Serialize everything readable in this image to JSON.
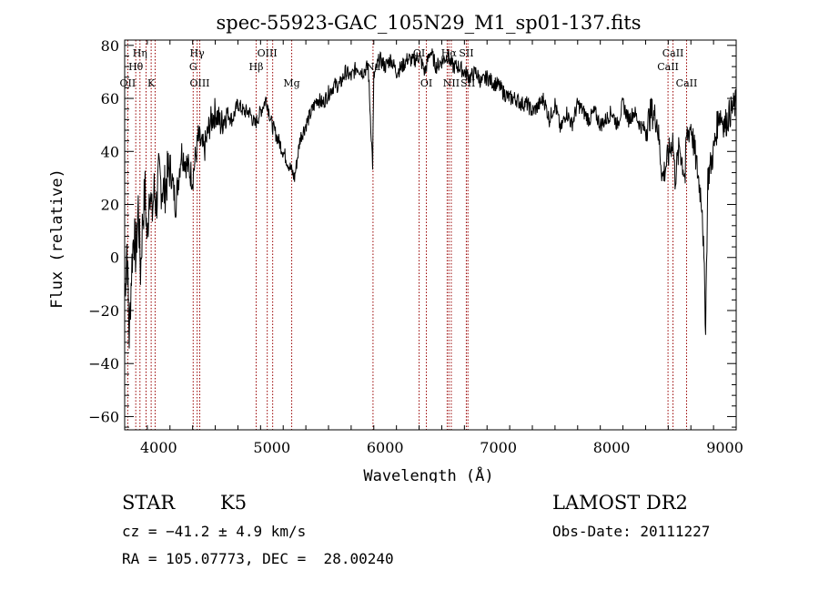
{
  "chart_data": {
    "type": "line",
    "title": "spec-55923-GAC_105N29_M1_sp01-137.fits",
    "xlabel": "Wavelength (Å)",
    "ylabel": "Flux (relative)",
    "xlim": [
      3700,
      9100
    ],
    "ylim": [
      -65,
      82
    ],
    "x_ticks": [
      4000,
      5000,
      6000,
      7000,
      8000,
      9000
    ],
    "y_ticks": [
      -60,
      -40,
      -20,
      0,
      20,
      40,
      60,
      80
    ],
    "grid": false,
    "legend": "none",
    "line_color": "#000000",
    "marker_color": "#990000",
    "series": [
      {
        "x": [
          3700,
          3720,
          3740,
          3760,
          3780,
          3800,
          3820,
          3840,
          3860,
          3880,
          3900,
          3920,
          3940,
          3960,
          3980,
          4000,
          4050,
          4100,
          4150,
          4200,
          4250,
          4300,
          4350,
          4400,
          4450,
          4500,
          4550,
          4600,
          4650,
          4700,
          4750,
          4800,
          4850,
          4900,
          4950,
          5000,
          5050,
          5100,
          5150,
          5200,
          5250,
          5300,
          5350,
          5400,
          5450,
          5500,
          5550,
          5600,
          5650,
          5700,
          5750,
          5800,
          5850,
          5890,
          5900,
          5950,
          6000,
          6050,
          6100,
          6150,
          6200,
          6250,
          6300,
          6350,
          6400,
          6450,
          6500,
          6550,
          6600,
          6650,
          6700,
          6750,
          6800,
          6850,
          6900,
          6950,
          7000,
          7050,
          7100,
          7150,
          7200,
          7250,
          7300,
          7350,
          7400,
          7450,
          7500,
          7550,
          7600,
          7650,
          7700,
          7750,
          7800,
          7850,
          7900,
          7950,
          8000,
          8050,
          8100,
          8150,
          8200,
          8250,
          8300,
          8350,
          8400,
          8450,
          8500,
          8540,
          8560,
          8600,
          8650,
          8660,
          8700,
          8750,
          8800,
          8830,
          8850,
          8900,
          8950,
          9000,
          9050,
          9100
        ],
        "y": [
          -15,
          5,
          -30,
          -5,
          10,
          0,
          20,
          -5,
          15,
          25,
          5,
          30,
          15,
          25,
          20,
          30,
          25,
          35,
          20,
          40,
          35,
          30,
          45,
          40,
          50,
          55,
          50,
          55,
          52,
          58,
          55,
          55,
          50,
          55,
          60,
          50,
          45,
          40,
          35,
          30,
          45,
          50,
          55,
          60,
          58,
          62,
          65,
          65,
          70,
          68,
          72,
          70,
          72,
          35,
          68,
          75,
          72,
          75,
          70,
          72,
          75,
          74,
          76,
          70,
          78,
          72,
          74,
          76,
          72,
          72,
          70,
          68,
          70,
          66,
          68,
          66,
          65,
          62,
          60,
          60,
          58,
          58,
          55,
          57,
          60,
          52,
          58,
          48,
          55,
          50,
          58,
          55,
          52,
          55,
          50,
          52,
          55,
          50,
          58,
          52,
          55,
          50,
          48,
          55,
          52,
          30,
          38,
          45,
          30,
          42,
          30,
          45,
          50,
          35,
          20,
          -25,
          30,
          40,
          55,
          50,
          55,
          58
        ]
      }
    ],
    "line_labels": [
      {
        "text": "Hη",
        "x": 3835,
        "row": 1
      },
      {
        "text": "Hθ",
        "x": 3798,
        "row": 2
      },
      {
        "text": "OII",
        "x": 3727,
        "row": 3
      },
      {
        "text": "K",
        "x": 3934,
        "row": 3
      },
      {
        "text": "Hγ",
        "x": 4340,
        "row": 1
      },
      {
        "text": "G",
        "x": 4305,
        "row": 2
      },
      {
        "text": "OIII",
        "x": 4363,
        "row": 3
      },
      {
        "text": "OIII",
        "x": 4959,
        "row": 1
      },
      {
        "text": "Hβ",
        "x": 4861,
        "row": 2
      },
      {
        "text": "Mg",
        "x": 5175,
        "row": 3
      },
      {
        "text": "Na",
        "x": 5893,
        "row": 2
      },
      {
        "text": "OI",
        "x": 6300,
        "row": 1
      },
      {
        "text": "OI",
        "x": 6364,
        "row": 3
      },
      {
        "text": "Hα",
        "x": 6563,
        "row": 1
      },
      {
        "text": "SII",
        "x": 6717,
        "row": 1
      },
      {
        "text": "NII",
        "x": 6584,
        "row": 3
      },
      {
        "text": "SII",
        "x": 6731,
        "row": 3
      },
      {
        "text": "CaII",
        "x": 8542,
        "row": 1
      },
      {
        "text": "CaII",
        "x": 8498,
        "row": 2
      },
      {
        "text": "CaII",
        "x": 8662,
        "row": 3
      }
    ],
    "marker_lines": [
      3727,
      3798,
      3835,
      3889,
      3934,
      3969,
      4305,
      4340,
      4363,
      4861,
      4959,
      5007,
      5175,
      5893,
      6300,
      6364,
      6548,
      6563,
      6584,
      6717,
      6731,
      8498,
      8542,
      8662
    ]
  },
  "info": {
    "class": "STAR",
    "subclass": "K5",
    "survey": "LAMOST DR2",
    "cz": "cz = −41.2 ± 4.9 km/s",
    "obs_date": "Obs-Date: 20111227",
    "coords": "RA = 105.07773, DEC =  28.00240"
  }
}
